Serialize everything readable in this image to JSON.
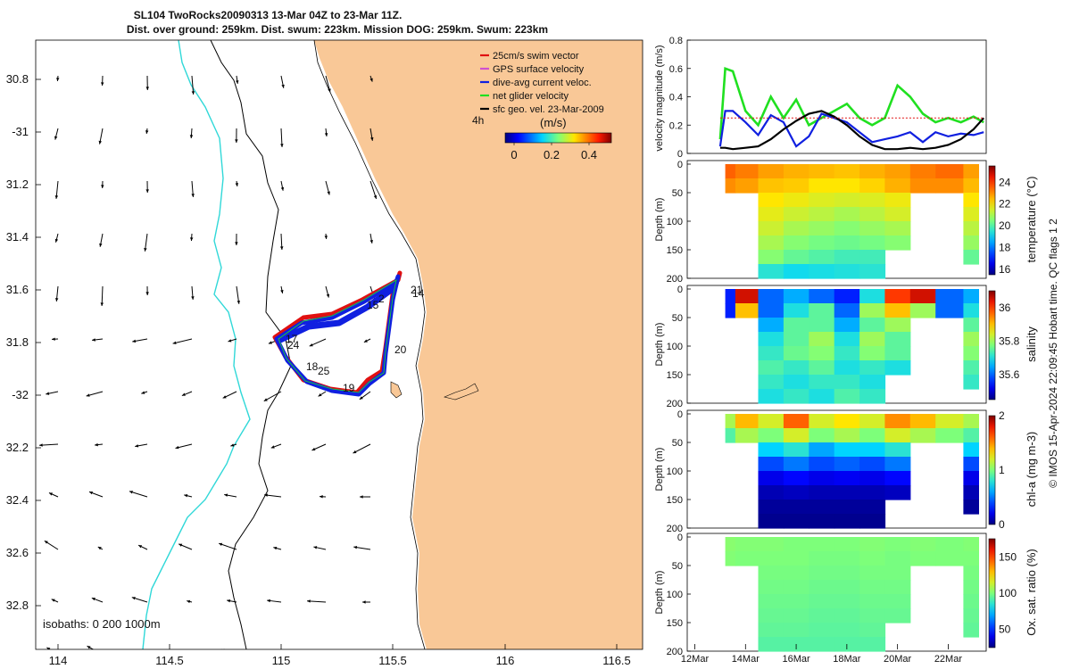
{
  "title": {
    "line1": "SL104 TwoRocks20090313 13-Mar 04Z to 23-Mar 11Z.",
    "line2": "Dist. over ground: 259km. Dist. swum: 223km. Mission DOG: 259km. Swum: 223km"
  },
  "map": {
    "lon_ticks": [
      "114",
      "114.5",
      "115",
      "115.5",
      "116",
      "116.5"
    ],
    "lat_ticks": [
      "30.8",
      "-31",
      "31.2",
      "31.4",
      "31.6",
      "31.8",
      "-32",
      "32.2",
      "32.4",
      "32.6",
      "32.8"
    ],
    "legend": [
      {
        "label": "25cm/s swim vector",
        "color": "#e01010"
      },
      {
        "label": "GPS surface velocity",
        "color": "#d050d0"
      },
      {
        "label": "dive-avg current veloc.",
        "color": "#1020e0"
      },
      {
        "label": "net glider velocity",
        "color": "#20e020"
      },
      {
        "label": "sfc geo. vel. 23-Mar-2009",
        "color": "#000000"
      }
    ],
    "time_label": "4h",
    "colorbar_label": "(m/s)",
    "colorbar_ticks": [
      "0",
      "0.2",
      "0.4"
    ],
    "isobath_label": "isobaths: 0   200  1000m",
    "track_labels": [
      "21",
      "14",
      "2",
      "15",
      "17",
      "24",
      "20",
      "18",
      "25",
      "19"
    ],
    "land_color": "#f9c897",
    "bathy_200_color": "#000000",
    "bathy_1000_color": "#30d8d8"
  },
  "velocity_panel": {
    "ylabel": "velocity magnitude (m/s)",
    "yticks": [
      "0",
      "0.2",
      "0.4",
      "0.6",
      "0.8"
    ]
  },
  "sections": [
    {
      "ylabel": "Depth (m)",
      "clabel": "temperature (°C)",
      "cticks": [
        "16",
        "18",
        "20",
        "22",
        "24"
      ],
      "yticks": [
        "0",
        "50",
        "100",
        "150",
        "200"
      ]
    },
    {
      "ylabel": "Depth (m)",
      "clabel": "salinity",
      "cticks": [
        "35.6",
        "35.8",
        "36"
      ],
      "yticks": [
        "0",
        "50",
        "100",
        "150",
        "200"
      ]
    },
    {
      "ylabel": "Depth (m)",
      "clabel": "chl-a (mg m-3)",
      "cticks": [
        "0",
        "1",
        "2"
      ],
      "yticks": [
        "0",
        "50",
        "100",
        "150",
        "200"
      ]
    },
    {
      "ylabel": "Depth (m)",
      "clabel": "Ox. sat. ratio (%)",
      "cticks": [
        "50",
        "100",
        "150"
      ],
      "yticks": [
        "0",
        "50",
        "100",
        "150",
        "200"
      ]
    }
  ],
  "time_axis": [
    "12Mar",
    "14Mar",
    "16Mar",
    "18Mar",
    "20Mar",
    "22Mar"
  ],
  "side_note": "© IMOS 15-Apr-2024 22:09:45 Hobart time. QC flags 1  2",
  "chart_data": [
    {
      "type": "line",
      "title": "",
      "xlabel": "",
      "ylabel": "velocity magnitude (m/s)",
      "ylim": [
        0,
        0.8
      ],
      "x": [
        13.0,
        13.2,
        13.5,
        14.0,
        14.5,
        15.0,
        15.5,
        16.0,
        16.5,
        17.0,
        17.5,
        18.0,
        18.5,
        19.0,
        19.5,
        20.0,
        20.5,
        21.0,
        21.5,
        22.0,
        22.5,
        23.0,
        23.4
      ],
      "series": [
        {
          "name": "net glider velocity",
          "color": "#20e020",
          "values": [
            0.1,
            0.6,
            0.58,
            0.3,
            0.2,
            0.4,
            0.25,
            0.38,
            0.2,
            0.25,
            0.3,
            0.35,
            0.25,
            0.2,
            0.25,
            0.48,
            0.4,
            0.28,
            0.22,
            0.25,
            0.22,
            0.26,
            0.22
          ]
        },
        {
          "name": "dive-avg current veloc.",
          "color": "#1020e0",
          "values": [
            0.05,
            0.3,
            0.3,
            0.22,
            0.13,
            0.27,
            0.22,
            0.05,
            0.12,
            0.28,
            0.25,
            0.22,
            0.15,
            0.08,
            0.1,
            0.12,
            0.15,
            0.08,
            0.15,
            0.12,
            0.14,
            0.13,
            0.15
          ]
        },
        {
          "name": "sfc geo. vel. 23-Mar-2009",
          "color": "#000000",
          "values": [
            0.04,
            0.04,
            0.03,
            0.04,
            0.05,
            0.1,
            0.17,
            0.23,
            0.28,
            0.3,
            0.26,
            0.2,
            0.12,
            0.06,
            0.03,
            0.03,
            0.04,
            0.03,
            0.04,
            0.06,
            0.1,
            0.17,
            0.25
          ]
        },
        {
          "name": "25cm/s swim vector",
          "color": "#e01010",
          "values": [
            0.25,
            0.25,
            0.25,
            0.25,
            0.25,
            0.25,
            0.25,
            0.25,
            0.25,
            0.25,
            0.25,
            0.25,
            0.25,
            0.25,
            0.25,
            0.25,
            0.25,
            0.25,
            0.25,
            0.25,
            0.25,
            0.25,
            0.25
          ]
        }
      ]
    },
    {
      "type": "heatmap",
      "ylabel": "Depth (m)",
      "clabel": "temperature (°C)",
      "ylim": [
        200,
        0
      ],
      "clim": [
        15.5,
        25.5
      ],
      "x": [
        13.2,
        14.0,
        15.0,
        16.0,
        17.0,
        18.0,
        19.0,
        20.0,
        21.0,
        22.0,
        23.2
      ],
      "depth": [
        0,
        25,
        50,
        75,
        100,
        125,
        150,
        175
      ],
      "values": [
        [
          23.5,
          23.2,
          22.8,
          22.6,
          22.5,
          22.4,
          22.6,
          22.8,
          23.2,
          23.4,
          22.8
        ],
        [
          23.0,
          22.8,
          22.4,
          22.3,
          22.0,
          22.0,
          22.2,
          22.6,
          23.0,
          23.0,
          22.5
        ],
        [
          null,
          null,
          22.0,
          21.8,
          21.6,
          21.5,
          21.6,
          21.8,
          null,
          null,
          22.0
        ],
        [
          null,
          null,
          21.7,
          21.4,
          21.2,
          21.0,
          21.2,
          21.5,
          null,
          null,
          21.6
        ],
        [
          null,
          null,
          21.4,
          21.0,
          20.8,
          20.6,
          20.8,
          21.0,
          null,
          null,
          21.2
        ],
        [
          null,
          null,
          21.0,
          20.6,
          20.4,
          20.3,
          20.4,
          20.6,
          null,
          null,
          20.8
        ],
        [
          null,
          null,
          20.6,
          20.2,
          20.0,
          19.8,
          19.8,
          null,
          null,
          null,
          20.2
        ],
        [
          null,
          null,
          19.5,
          19.2,
          19.3,
          19.4,
          19.5,
          null,
          null,
          null,
          null
        ]
      ]
    },
    {
      "type": "heatmap",
      "ylabel": "Depth (m)",
      "clabel": "salinity",
      "ylim": [
        200,
        0
      ],
      "clim": [
        35.45,
        36.1
      ],
      "x": [
        13.2,
        14.0,
        15.0,
        16.0,
        17.0,
        18.0,
        19.0,
        20.0,
        21.0,
        22.0,
        23.2
      ],
      "depth": [
        0,
        25,
        50,
        75,
        100,
        125,
        150,
        175
      ],
      "values": [
        [
          35.55,
          36.05,
          35.6,
          35.65,
          35.6,
          35.55,
          35.7,
          36.0,
          36.05,
          35.6,
          35.65
        ],
        [
          35.55,
          35.9,
          35.6,
          35.7,
          35.75,
          35.6,
          35.8,
          35.9,
          35.8,
          35.6,
          35.7
        ],
        [
          null,
          null,
          35.65,
          35.75,
          35.75,
          35.65,
          35.75,
          35.8,
          null,
          null,
          35.75
        ],
        [
          null,
          null,
          35.7,
          35.75,
          35.8,
          35.7,
          35.8,
          35.75,
          null,
          null,
          35.8
        ],
        [
          null,
          null,
          35.72,
          35.76,
          35.78,
          35.72,
          35.78,
          35.75,
          null,
          null,
          35.78
        ],
        [
          null,
          null,
          35.74,
          35.72,
          35.75,
          35.7,
          35.72,
          35.7,
          null,
          null,
          35.74
        ],
        [
          null,
          null,
          35.72,
          35.7,
          35.72,
          35.72,
          35.7,
          null,
          null,
          null,
          35.72
        ],
        [
          null,
          null,
          35.7,
          35.72,
          35.7,
          35.74,
          35.72,
          null,
          null,
          null,
          null
        ]
      ]
    },
    {
      "type": "heatmap",
      "ylabel": "Depth (m)",
      "clabel": "chl-a (mg m-3)",
      "ylim": [
        200,
        0
      ],
      "clim": [
        0,
        2
      ],
      "x": [
        13.2,
        14.0,
        15.0,
        16.0,
        17.0,
        18.0,
        19.0,
        20.0,
        21.0,
        22.0,
        23.2
      ],
      "depth": [
        0,
        25,
        50,
        75,
        100,
        125,
        150,
        175
      ],
      "values": [
        [
          1.1,
          1.4,
          1.2,
          1.6,
          1.2,
          1.3,
          1.2,
          1.5,
          1.4,
          1.2,
          1.1
        ],
        [
          0.9,
          1.1,
          1.0,
          1.2,
          1.0,
          1.1,
          1.0,
          1.2,
          1.1,
          1.0,
          0.9
        ],
        [
          null,
          null,
          0.7,
          0.8,
          0.6,
          0.7,
          0.7,
          0.8,
          null,
          null,
          0.7
        ],
        [
          null,
          null,
          0.4,
          0.5,
          0.4,
          0.45,
          0.4,
          0.5,
          null,
          null,
          0.4
        ],
        [
          null,
          null,
          0.2,
          0.25,
          0.2,
          0.22,
          0.2,
          0.25,
          null,
          null,
          0.2
        ],
        [
          null,
          null,
          0.1,
          0.12,
          0.1,
          0.1,
          0.1,
          0.12,
          null,
          null,
          0.1
        ],
        [
          null,
          null,
          0.05,
          0.05,
          0.05,
          0.05,
          0.05,
          null,
          null,
          null,
          0.05
        ],
        [
          null,
          null,
          0.03,
          0.03,
          0.03,
          0.03,
          0.03,
          null,
          null,
          null,
          null
        ]
      ]
    },
    {
      "type": "heatmap",
      "ylabel": "Depth (m)",
      "clabel": "Ox. sat. ratio (%)",
      "ylim": [
        200,
        0
      ],
      "clim": [
        25,
        175
      ],
      "x": [
        13.2,
        14.0,
        15.0,
        16.0,
        17.0,
        18.0,
        19.0,
        20.0,
        21.0,
        22.0,
        23.2
      ],
      "depth": [
        0,
        25,
        50,
        75,
        100,
        125,
        150,
        175
      ],
      "values": [
        [
          102,
          101,
          101,
          100,
          100,
          100,
          101,
          100,
          101,
          100,
          101
        ],
        [
          101,
          100,
          100,
          100,
          99,
          99,
          100,
          99,
          100,
          100,
          100
        ],
        [
          null,
          null,
          99,
          99,
          98,
          98,
          99,
          99,
          null,
          null,
          99
        ],
        [
          null,
          null,
          98,
          98,
          97,
          97,
          98,
          98,
          null,
          null,
          98
        ],
        [
          null,
          null,
          97,
          97,
          96,
          96,
          97,
          97,
          null,
          null,
          97
        ],
        [
          null,
          null,
          96,
          96,
          95,
          95,
          96,
          96,
          null,
          null,
          96
        ],
        [
          null,
          null,
          95,
          95,
          94,
          94,
          95,
          null,
          null,
          null,
          95
        ],
        [
          null,
          null,
          93,
          93,
          93,
          93,
          93,
          null,
          null,
          null,
          null
        ]
      ]
    }
  ]
}
